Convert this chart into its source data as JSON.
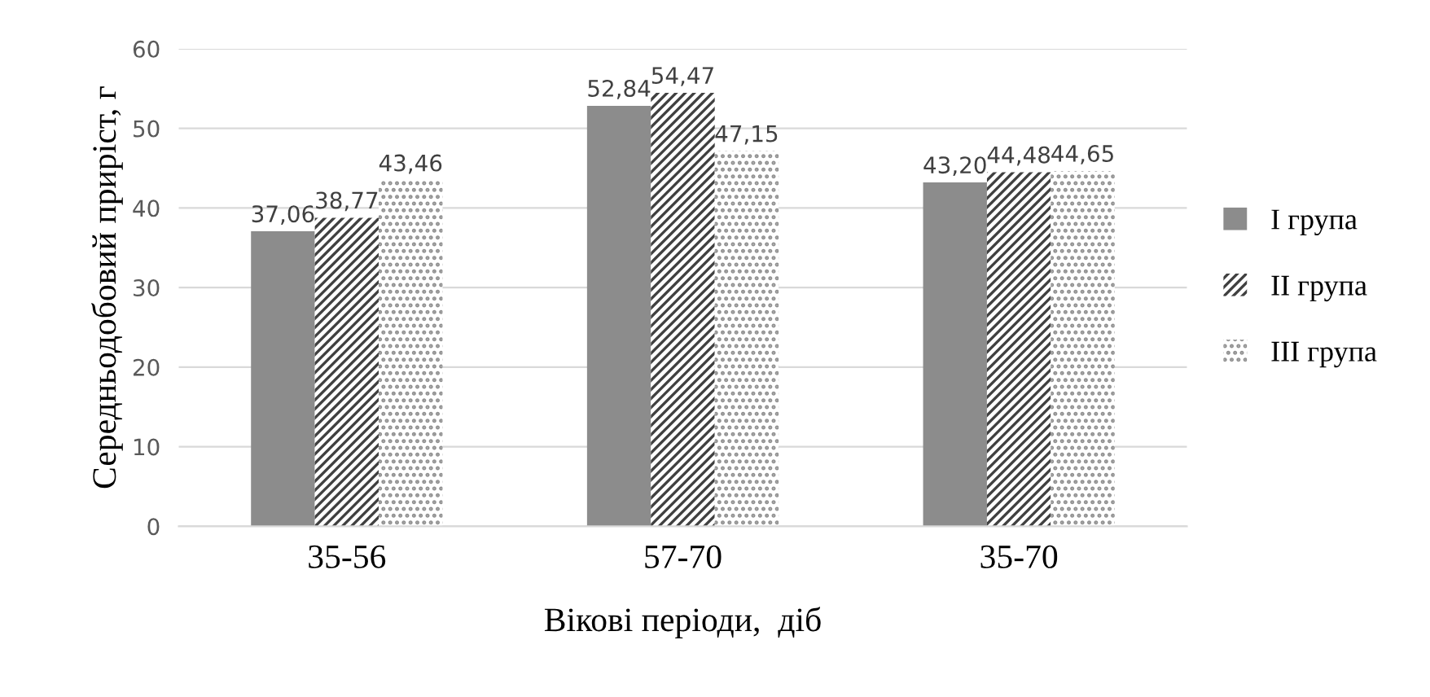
{
  "chart_data": {
    "type": "bar",
    "xlabel": "Вікові періоди,  діб",
    "ylabel": "Середньодобовий приріст, г",
    "categories": [
      "35-56",
      "57-70",
      "35-70"
    ],
    "series": [
      {
        "name": "I група",
        "color": "#8c8c8c",
        "values": [
          37.06,
          52.84,
          43.2
        ],
        "value_labels": [
          "37,06",
          "52,84",
          "43,20"
        ]
      },
      {
        "name": "II група",
        "color": "#404040",
        "values": [
          38.77,
          54.47,
          44.48
        ],
        "value_labels": [
          "38,77",
          "54,47",
          "44,48"
        ]
      },
      {
        "name": "III група",
        "color": "#909090",
        "values": [
          43.46,
          47.15,
          44.65
        ],
        "value_labels": [
          "43,46",
          "47,15",
          "44,65"
        ]
      }
    ],
    "ylim": [
      0,
      60
    ],
    "yticks": [
      0,
      10,
      20,
      30,
      40,
      50,
      60
    ],
    "grid": "y",
    "legend": "right"
  }
}
